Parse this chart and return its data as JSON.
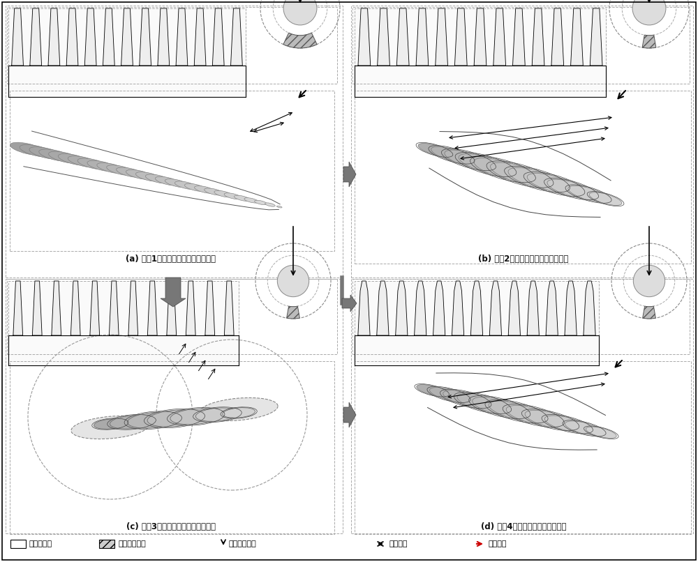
{
  "panel_a_label": "(a) 阶段1：标准渐开线廓形整体磨削",
  "panel_b_label": "(b) 阶段2：标准渐开线廓形整体磨削",
  "panel_c_label": "(c) 阶段3：修瘦渐开线廓形单齿磨削",
  "panel_d_label": "(d) 阶段4：齿顶倒角廓形整体磨削",
  "legend": [
    {
      "label": "加工齿范围",
      "type": "rect_white"
    },
    {
      "label": "加工齿槽区域",
      "type": "rect_hatch"
    },
    {
      "label": "砂轮进给方向",
      "type": "arrow_down"
    },
    {
      "label": "磨削行程",
      "type": "arrow_lr"
    },
    {
      "label": "齿槽切换",
      "type": "arrow_red"
    }
  ],
  "bg": "#ffffff",
  "gray_arrow": "#666666",
  "black": "#000000",
  "light_gray": "#e8e8e8",
  "mid_gray": "#c0c0c0",
  "dark_gray": "#888888",
  "red": "#cc0000"
}
